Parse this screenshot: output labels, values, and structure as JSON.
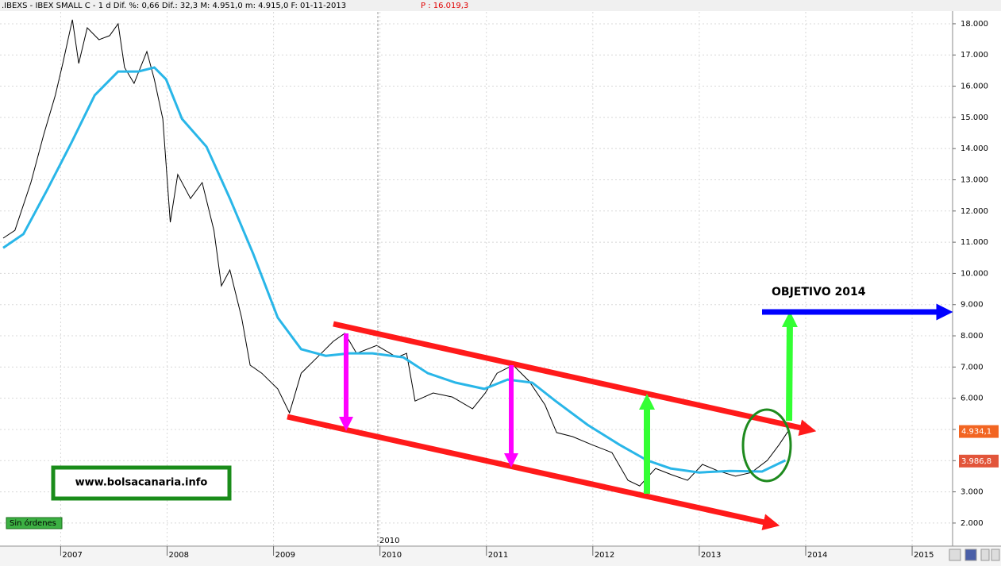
{
  "header": {
    "info": ".IBEXS - IBEX SMALL C -  1 d Dif. %: 0,66 Dif.: 32,3 M: 4.951,0 m: 4.915,0 F: 01-11-2013",
    "price": "P : 16.019,3"
  },
  "annotations": {
    "target": "OBJETIVO 2014",
    "site": "www.bolsacanaria.info",
    "status": "Sin órdenes",
    "marker_year": "2010"
  },
  "chart_data": {
    "type": "line",
    "series": [
      {
        "name": "IBEXS",
        "color": "#000000",
        "x": [
          2006.46,
          2006.57,
          2006.72,
          2006.84,
          2006.95,
          2007.02,
          2007.11,
          2007.17,
          2007.25,
          2007.36,
          2007.46,
          2007.54,
          2007.6,
          2007.69,
          2007.81,
          2007.88,
          2007.96,
          2008.03,
          2008.1,
          2008.22,
          2008.33,
          2008.44,
          2008.51,
          2008.59,
          2008.7,
          2008.78,
          2008.89,
          2009.04,
          2009.15,
          2009.26,
          2009.41,
          2009.56,
          2009.67,
          2009.78,
          2009.97,
          2010.16,
          2010.25,
          2010.33,
          2010.5,
          2010.68,
          2010.87,
          2010.99,
          2011.1,
          2011.25,
          2011.4,
          2011.55,
          2011.66,
          2011.81,
          2011.99,
          2012.18,
          2012.33,
          2012.44,
          2012.59,
          2012.74,
          2012.89,
          2013.03,
          2013.18,
          2013.34,
          2013.49,
          2013.64,
          2013.75,
          2013.84
        ],
        "values": [
          11130,
          11380,
          12910,
          14440,
          15710,
          16730,
          18130,
          16730,
          17870,
          17490,
          17620,
          18000,
          16600,
          16090,
          17110,
          16220,
          14950,
          11640,
          13170,
          12400,
          12910,
          11380,
          9600,
          10110,
          8580,
          7060,
          6800,
          6300,
          5530,
          6800,
          7310,
          7820,
          8080,
          7440,
          7690,
          7310,
          7440,
          5910,
          6170,
          6040,
          5660,
          6170,
          6800,
          7060,
          6550,
          5790,
          4900,
          4770,
          4510,
          4260,
          3370,
          3190,
          3750,
          3550,
          3370,
          3880,
          3670,
          3500,
          3620,
          4010,
          4510,
          4970
        ]
      },
      {
        "name": "MA",
        "color": "#29b6e8",
        "x": [
          2006.46,
          2006.65,
          2006.87,
          2007.1,
          2007.32,
          2007.54,
          2007.73,
          2007.88,
          2007.99,
          2008.14,
          2008.37,
          2008.59,
          2008.81,
          2009.04,
          2009.26,
          2009.49,
          2009.71,
          2009.93,
          2010.22,
          2010.45,
          2010.71,
          2010.98,
          2011.2,
          2011.43,
          2011.65,
          2011.95,
          2012.25,
          2012.51,
          2012.73,
          2013.0,
          2013.29,
          2013.59,
          2013.81
        ],
        "values": [
          10820,
          11260,
          12660,
          14180,
          15710,
          16470,
          16470,
          16600,
          16220,
          14950,
          14060,
          12400,
          10620,
          8580,
          7570,
          7360,
          7440,
          7440,
          7310,
          6800,
          6500,
          6300,
          6600,
          6500,
          5910,
          5150,
          4510,
          4010,
          3750,
          3620,
          3670,
          3650,
          4010
        ]
      }
    ],
    "last_labels": [
      {
        "value": 4934.1,
        "label": "4.934,1",
        "color": "#f26522"
      },
      {
        "value": 3986.8,
        "label": "3.986,8",
        "color": "#e2553a"
      }
    ],
    "xlim": [
      2006.43,
      2015.38
    ],
    "xticks": [
      2007,
      2008,
      2009,
      2010,
      2011,
      2012,
      2013,
      2014,
      2015
    ],
    "ylim": [
      1260,
      18380
    ],
    "yticks": [
      {
        "value": 2000,
        "label": "2.000"
      },
      {
        "value": 3000,
        "label": "3.000"
      },
      {
        "value": 4000,
        "label": "4.000"
      },
      {
        "value": 5000,
        "label": "5.000"
      },
      {
        "value": 6000,
        "label": "6.000"
      },
      {
        "value": 7000,
        "label": "7.000"
      },
      {
        "value": 8000,
        "label": "8.000"
      },
      {
        "value": 9000,
        "label": "9.000"
      },
      {
        "value": 10000,
        "label": "10.000"
      },
      {
        "value": 11000,
        "label": "11.000"
      },
      {
        "value": 12000,
        "label": "12.000"
      },
      {
        "value": 13000,
        "label": "13.000"
      },
      {
        "value": 14000,
        "label": "14.000"
      },
      {
        "value": 15000,
        "label": "15.000"
      },
      {
        "value": 16000,
        "label": "16.000"
      },
      {
        "value": 17000,
        "label": "17.000"
      },
      {
        "value": 18000,
        "label": "18.000"
      }
    ],
    "grid": true
  }
}
